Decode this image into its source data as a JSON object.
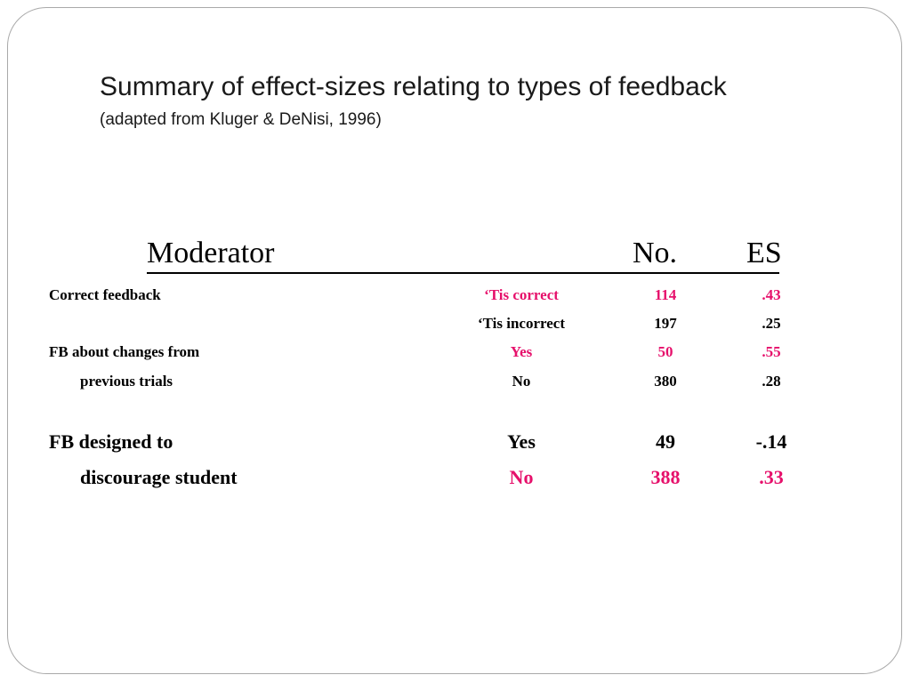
{
  "title": "Summary of effect-sizes relating to types of feedback",
  "subtitle": "(adapted from Kluger & DeNisi, 1996)",
  "table": {
    "headers": {
      "moderator": "Moderator",
      "no": "No.",
      "es": "ES"
    },
    "rows": [
      {
        "label": "Correct feedback",
        "value": "‘Tis correct",
        "n": "114",
        "es": ".43",
        "highlight": true
      },
      {
        "label": "",
        "value": "‘Tis incorrect",
        "n": "197",
        "es": ".25",
        "highlight": false
      },
      {
        "label": "FB about changes from",
        "value": "Yes",
        "n": "50",
        "es": ".55",
        "highlight": true
      },
      {
        "label": "previous trials",
        "value": "No",
        "n": "380",
        "es": ".28",
        "highlight": false
      },
      {
        "label": "FB designed to",
        "value": "Yes",
        "n": "49",
        "es": "-.14",
        "highlight": false
      },
      {
        "label": "discourage student",
        "value": "No",
        "n": "388",
        "es": ".33",
        "highlight": true
      }
    ]
  },
  "colors": {
    "highlight": "#e6106b",
    "text": "#000000",
    "border": "#a9a9a9"
  }
}
